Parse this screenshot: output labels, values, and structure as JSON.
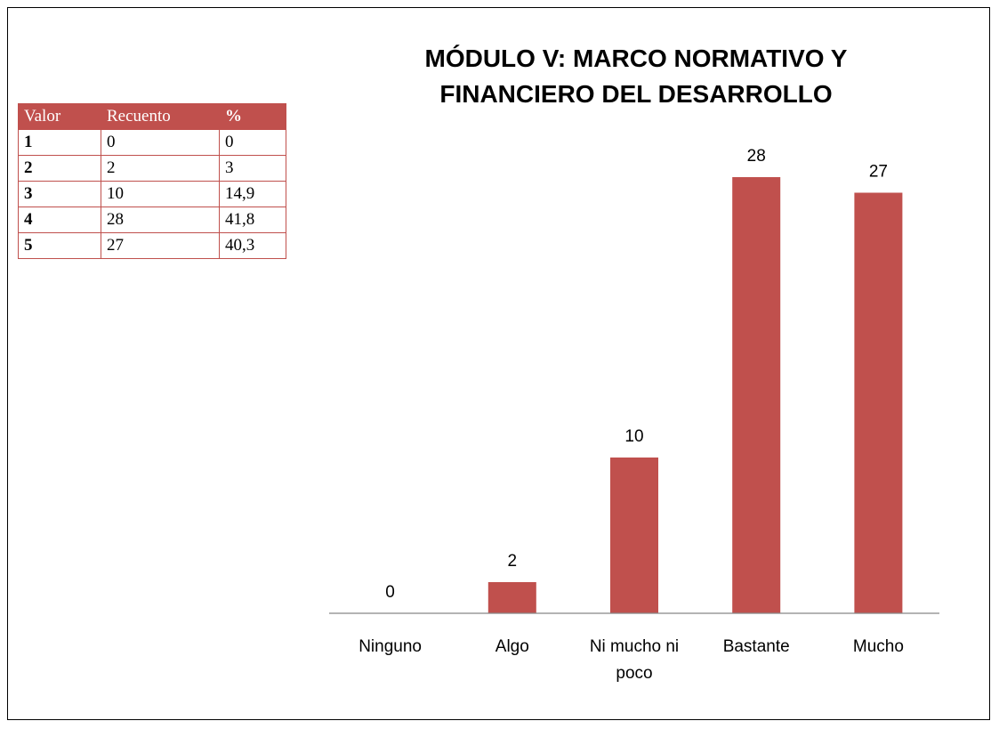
{
  "table": {
    "header": [
      "Valor",
      "Recuento",
      "%"
    ],
    "rows": [
      [
        "1",
        "0",
        "0"
      ],
      [
        "2",
        "2",
        "3"
      ],
      [
        "3",
        "10",
        "14,9"
      ],
      [
        "4",
        "28",
        "41,8"
      ],
      [
        "5",
        "27",
        "40,3"
      ]
    ]
  },
  "chart_data": {
    "type": "bar",
    "title": "MÓDULO V: MARCO NORMATIVO Y FINANCIERO DEL DESARROLLO",
    "categories": [
      "Ninguno",
      "Algo",
      "Ni mucho ni poco",
      "Bastante",
      "Mucho"
    ],
    "values": [
      0,
      2,
      10,
      28,
      27
    ],
    "color": "#c0504d",
    "ylim": [
      0,
      30
    ]
  }
}
